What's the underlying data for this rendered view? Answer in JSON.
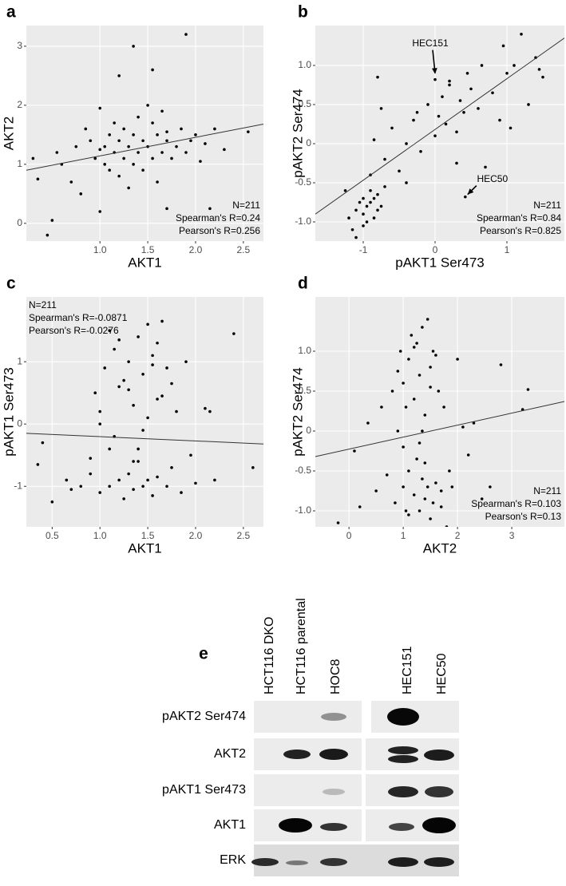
{
  "chart_data": [
    {
      "type": "scatter",
      "label": "a",
      "x_label": "AKT1",
      "y_label": "AKT2",
      "xlim": [
        0.23,
        2.71
      ],
      "ylim": [
        -0.3,
        3.35
      ],
      "xticks": [
        {
          "value": 1,
          "label": "1.0"
        },
        1.5,
        {
          "value": 2,
          "label": "2.0"
        },
        2.5
      ],
      "yticks": [
        0,
        1,
        2,
        3
      ],
      "annotations": [
        "N=211",
        "Spearman's R=0.24",
        "Pearson's R=0.256"
      ],
      "annotation_corner": "bottom-right",
      "fit": {
        "x": [
          0.23,
          2.71
        ],
        "y": [
          0.9,
          1.68
        ]
      },
      "x": [
        0.3,
        0.35,
        0.45,
        0.5,
        0.55,
        0.6,
        0.7,
        0.75,
        0.8,
        0.85,
        0.9,
        0.95,
        1.0,
        1.0,
        1.05,
        1.05,
        1.1,
        1.1,
        1.15,
        1.15,
        1.2,
        1.2,
        1.25,
        1.25,
        1.3,
        1.3,
        1.35,
        1.35,
        1.35,
        1.4,
        1.4,
        1.45,
        1.45,
        1.5,
        1.5,
        1.55,
        1.55,
        1.6,
        1.6,
        1.65,
        1.65,
        1.7,
        1.7,
        1.75,
        1.8,
        1.85,
        1.9,
        1.95,
        2.0,
        2.05,
        2.1,
        2.15,
        2.2,
        2.3,
        2.55,
        1.2,
        1.55,
        1.9,
        1.0,
        1.7
      ],
      "values": [
        1.1,
        0.75,
        -0.2,
        0.05,
        1.2,
        1.0,
        0.7,
        1.3,
        0.5,
        1.6,
        1.4,
        1.1,
        1.95,
        0.2,
        1.3,
        1.0,
        1.5,
        0.9,
        1.2,
        1.7,
        1.4,
        0.8,
        1.1,
        1.6,
        1.3,
        0.6,
        1.5,
        1.0,
        3.0,
        1.2,
        1.8,
        1.4,
        0.9,
        1.3,
        2.0,
        2.6,
        1.1,
        1.5,
        0.7,
        1.2,
        1.9,
        1.4,
        0.25,
        1.1,
        1.3,
        1.6,
        1.2,
        1.4,
        1.5,
        1.05,
        1.35,
        0.25,
        1.6,
        1.25,
        1.55,
        2.5,
        1.7,
        3.2,
        1.25,
        1.55
      ]
    },
    {
      "type": "scatter",
      "label": "b",
      "x_label": "pAKT1 Ser473",
      "y_label": "pAKT2 Ser474",
      "xlim": [
        -1.667,
        1.8
      ],
      "ylim": [
        -1.245,
        1.51
      ],
      "xticks": [
        -1,
        0,
        1
      ],
      "yticks": [
        {
          "value": -1,
          "label": "-1.0"
        },
        -0.5,
        0,
        0.5,
        {
          "value": 1,
          "label": "1.0"
        }
      ],
      "annotations": [
        "N=211",
        "Spearman's R=0.84",
        "Pearson's R=0.825"
      ],
      "annotation_corner": "bottom-right",
      "fit": {
        "x": [
          -1.667,
          1.8
        ],
        "y": [
          -0.9,
          1.35
        ]
      },
      "callouts": [
        {
          "text": "HEC151",
          "x": 0.0,
          "y": 0.85
        },
        {
          "text": "HEC50",
          "x": 0.42,
          "y": -0.68
        }
      ],
      "x": [
        -1.25,
        -1.2,
        -1.15,
        -1.1,
        -1.05,
        -1.0,
        -1.0,
        -0.95,
        -0.95,
        -0.9,
        -0.9,
        -0.85,
        -0.85,
        -0.8,
        -0.8,
        -0.75,
        -0.7,
        -1.1,
        -1.0,
        -0.9,
        -0.8,
        -0.7,
        -0.6,
        -0.5,
        -0.4,
        -0.3,
        -0.2,
        -0.1,
        0.0,
        0.05,
        0.1,
        0.15,
        0.2,
        0.3,
        0.35,
        0.4,
        0.45,
        0.5,
        0.6,
        0.7,
        0.8,
        0.9,
        1.0,
        1.1,
        1.2,
        1.3,
        1.4,
        1.5,
        -0.75,
        -0.85,
        0.0,
        0.42,
        -0.4,
        0.2,
        0.65,
        1.05,
        -0.25,
        0.3,
        0.95,
        1.45
      ],
      "values": [
        -0.6,
        -0.95,
        -1.1,
        -0.85,
        -0.75,
        -0.9,
        -0.7,
        -1.0,
        -0.8,
        -0.75,
        -0.6,
        -0.95,
        -0.7,
        -0.85,
        -0.65,
        -0.8,
        -0.55,
        -1.2,
        -1.05,
        -0.4,
        0.85,
        -0.2,
        0.2,
        -0.35,
        0.0,
        0.3,
        -0.1,
        0.5,
        0.1,
        0.35,
        0.6,
        0.25,
        0.8,
        0.15,
        0.55,
        0.4,
        0.9,
        0.7,
        0.45,
        -0.3,
        0.65,
        0.3,
        0.9,
        1.0,
        1.4,
        0.5,
        1.1,
        0.85,
        0.45,
        0.05,
        0.82,
        -0.68,
        -0.5,
        0.75,
        1.0,
        0.2,
        0.4,
        -0.25,
        1.25,
        0.95
      ]
    },
    {
      "type": "scatter",
      "label": "c",
      "x_label": "AKT1",
      "y_label": "pAKT1 Ser473",
      "xlim": [
        0.23,
        2.71
      ],
      "ylim": [
        -1.65,
        2.04
      ],
      "xticks": [
        0.5,
        {
          "value": 1,
          "label": "1.0"
        },
        1.5,
        {
          "value": 2,
          "label": "2.0"
        },
        2.5
      ],
      "yticks": [
        -1,
        0,
        1
      ],
      "annotations": [
        "N=211",
        "Spearman's R=-0.0871",
        "Pearson's R=-0.0276"
      ],
      "annotation_corner": "top-left",
      "fit": {
        "x": [
          0.23,
          2.71
        ],
        "y": [
          -0.15,
          -0.32
        ]
      },
      "x": [
        0.35,
        0.5,
        0.65,
        0.8,
        0.9,
        0.95,
        1.0,
        1.0,
        1.05,
        1.1,
        1.1,
        1.15,
        1.2,
        1.2,
        1.25,
        1.3,
        1.3,
        1.35,
        1.35,
        1.4,
        1.4,
        1.45,
        1.45,
        1.5,
        1.5,
        1.55,
        1.55,
        1.6,
        1.6,
        1.65,
        1.7,
        1.7,
        1.75,
        1.8,
        1.85,
        1.9,
        2.0,
        2.1,
        2.2,
        2.4,
        2.6,
        0.4,
        0.7,
        1.0,
        1.15,
        1.3,
        1.4,
        1.5,
        1.6,
        1.95,
        1.2,
        1.25,
        1.35,
        1.45,
        1.55,
        1.65,
        0.9,
        1.1,
        1.75,
        2.15
      ],
      "values": [
        -0.65,
        -1.25,
        -0.9,
        -1.0,
        -0.8,
        0.5,
        0.2,
        -1.1,
        0.9,
        -0.4,
        -1.0,
        1.2,
        0.6,
        -0.9,
        -1.2,
        1.0,
        -0.8,
        0.3,
        -1.05,
        1.4,
        -0.6,
        0.8,
        -1.0,
        1.6,
        -0.9,
        1.1,
        -1.15,
        0.4,
        -0.85,
        1.65,
        0.9,
        -1.0,
        -0.7,
        0.2,
        -1.1,
        1.0,
        -0.95,
        0.25,
        -0.9,
        1.45,
        -0.7,
        -0.3,
        -1.05,
        0.0,
        -0.2,
        0.55,
        -0.4,
        0.1,
        1.3,
        -0.5,
        1.35,
        0.7,
        -0.6,
        -0.1,
        0.95,
        0.45,
        -0.55,
        1.5,
        0.65,
        0.2
      ]
    },
    {
      "type": "scatter",
      "label": "d",
      "x_label": "AKT2",
      "y_label": "pAKT2 Ser474",
      "xlim": [
        -0.62,
        3.97
      ],
      "ylim": [
        -1.2,
        1.68
      ],
      "xticks": [
        0,
        1,
        2,
        3
      ],
      "yticks": [
        {
          "value": -1,
          "label": "-1.0"
        },
        -0.5,
        0,
        0.5,
        {
          "value": 1,
          "label": "1.0"
        }
      ],
      "annotations": [
        "N=211",
        "Spearman's R=0.103",
        "Pearson's R=0.13"
      ],
      "annotation_corner": "bottom-right",
      "fit": {
        "x": [
          -0.62,
          3.97
        ],
        "y": [
          -0.32,
          0.37
        ]
      },
      "x": [
        -0.2,
        0.1,
        0.2,
        0.35,
        0.5,
        0.6,
        0.7,
        0.8,
        0.85,
        0.9,
        0.95,
        1.0,
        1.0,
        1.05,
        1.05,
        1.1,
        1.1,
        1.15,
        1.2,
        1.2,
        1.25,
        1.25,
        1.3,
        1.3,
        1.35,
        1.35,
        1.4,
        1.4,
        1.45,
        1.45,
        1.5,
        1.5,
        1.55,
        1.6,
        1.65,
        1.7,
        1.75,
        1.8,
        1.9,
        2.0,
        2.1,
        2.3,
        2.45,
        2.6,
        2.8,
        3.2,
        3.3,
        1.0,
        1.3,
        1.5,
        1.6,
        1.2,
        0.9,
        1.4,
        1.7,
        1.1,
        1.35,
        1.55,
        1.85,
        2.2
      ],
      "values": [
        -1.15,
        -0.25,
        -0.95,
        0.1,
        -0.75,
        0.3,
        -0.55,
        0.5,
        -0.9,
        0.0,
        1.0,
        -0.7,
        0.6,
        -1.0,
        0.3,
        0.9,
        -0.5,
        1.2,
        -0.8,
        0.4,
        1.1,
        -0.35,
        -1.0,
        0.7,
        1.3,
        -0.6,
        0.2,
        -0.85,
        1.4,
        -0.7,
        0.8,
        -1.1,
        1.0,
        -0.65,
        0.5,
        -0.95,
        0.3,
        -1.2,
        -0.7,
        0.9,
        0.05,
        0.1,
        -0.85,
        -0.7,
        0.83,
        0.27,
        0.52,
        -0.2,
        -0.15,
        0.55,
        0.95,
        1.05,
        0.75,
        -0.4,
        -0.75,
        -1.05,
        0.0,
        -0.9,
        -0.5,
        -0.3
      ]
    }
  ],
  "blot": {
    "label": "e",
    "lanes": [
      "HCT116 DKO",
      "HCT116 parental",
      "HOC8",
      "HEC151",
      "HEC50"
    ],
    "rows": [
      "pAKT2 Ser474",
      "AKT2",
      "pAKT1 Ser473",
      "AKT1",
      "ERK"
    ]
  }
}
